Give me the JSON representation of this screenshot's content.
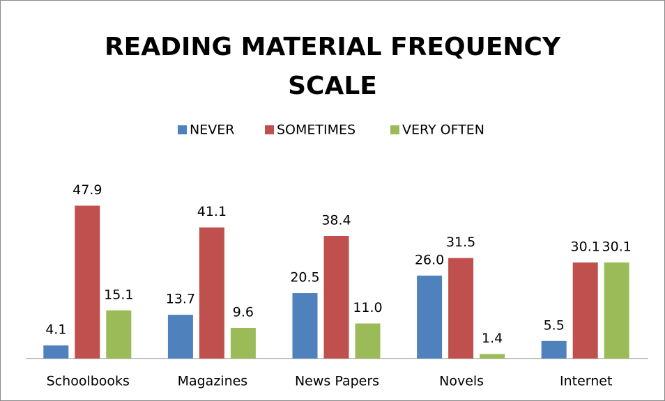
{
  "chart_data": {
    "type": "bar",
    "title": "READING MATERIAL FREQUENCY SCALE",
    "categories": [
      "Schoolbooks",
      "Magazines",
      "News Papers",
      "Novels",
      "Internet"
    ],
    "series": [
      {
        "name": "NEVER",
        "color": "#4f81bd",
        "values": [
          4.1,
          13.7,
          20.5,
          26.0,
          5.5
        ],
        "value_labels": [
          "4.1",
          "13.7",
          "20.5",
          "26.0",
          "5.5"
        ]
      },
      {
        "name": "SOMETIMES",
        "color": "#c0504d",
        "values": [
          47.9,
          41.1,
          38.4,
          31.5,
          30.1
        ],
        "value_labels": [
          "47.9",
          "41.1",
          "38.4",
          "31.5",
          "30.1"
        ]
      },
      {
        "name": "VERY OFTEN",
        "color": "#9bbb59",
        "values": [
          15.1,
          9.6,
          11.0,
          1.4,
          30.1
        ],
        "value_labels": [
          "15.1",
          "9.6",
          "11.0",
          "1.4",
          "30.1"
        ]
      }
    ],
    "ylim": [
      0,
      60
    ],
    "legend": "top"
  }
}
